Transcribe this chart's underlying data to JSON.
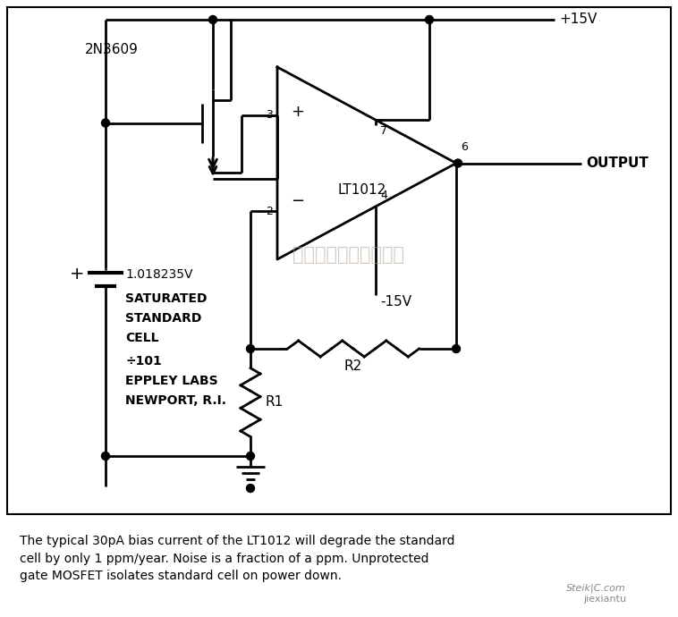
{
  "background_color": "#ffffff",
  "caption": "The typical 30pA bias current of the LT1012 will degrade the standard\ncell by only 1 ppm/year. Noise is a fraction of a ppm. Unprotected\ngate MOSFET isolates standard cell on power down.",
  "watermark": "杭州将睦科技有限公司",
  "label_2N3609": "2N3609",
  "label_LT1012": "LT1012",
  "label_OUTPUT": "OUTPUT",
  "label_plus15V": "+15V",
  "label_minus15V": "-15V",
  "label_voltage": "1.018235V",
  "label_cell_line1": "SATURATED",
  "label_cell_line2": "STANDARD",
  "label_cell_line3": "CELL",
  "label_cell_line4": "÷101",
  "label_cell_line5": "EPPLEY LABS",
  "label_cell_line6": "NEWPORT, R.I.",
  "label_R1": "R1",
  "label_R2": "R2",
  "pin3": "3",
  "pin2": "2",
  "pin7": "7",
  "pin4": "4",
  "pin6": "6"
}
